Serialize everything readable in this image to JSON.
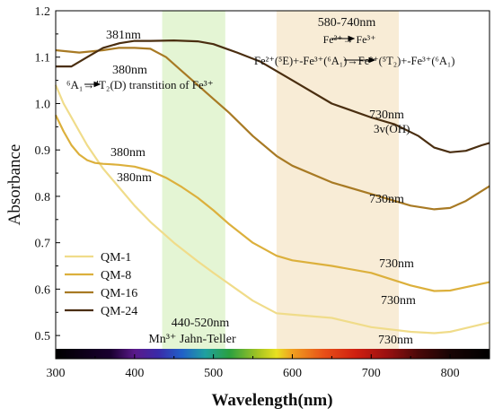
{
  "chart_data": {
    "type": "line",
    "xlabel": "Wavelength(nm)",
    "ylabel": "Absorbance",
    "xlim": [
      300,
      850
    ],
    "ylim": [
      0.45,
      1.2
    ],
    "xticks": [
      "300",
      "400",
      "500",
      "600",
      "700",
      "800"
    ],
    "yticks": [
      "0.5",
      "0.6",
      "0.7",
      "0.8",
      "0.9",
      "1.0",
      "1.1",
      "1.2"
    ],
    "legend_position": "bottom-left",
    "bands": [
      {
        "range": [
          435,
          515
        ],
        "color": "#e4f5d4"
      },
      {
        "range": [
          580,
          735
        ],
        "color": "#f8ecd6"
      }
    ],
    "series": [
      {
        "name": "QM-1",
        "color": "#f0dc8a",
        "x": [
          300,
          310,
          320,
          330,
          340,
          350,
          360,
          380,
          400,
          420,
          450,
          480,
          500,
          550,
          580,
          600,
          650,
          700,
          750,
          780,
          800,
          850
        ],
        "y": [
          1.04,
          1.0,
          0.97,
          0.94,
          0.91,
          0.885,
          0.86,
          0.82,
          0.78,
          0.745,
          0.7,
          0.66,
          0.635,
          0.575,
          0.548,
          0.545,
          0.538,
          0.518,
          0.508,
          0.505,
          0.508,
          0.528
        ]
      },
      {
        "name": "QM-8",
        "color": "#dcb03c",
        "x": [
          300,
          310,
          320,
          330,
          340,
          350,
          360,
          370,
          380,
          400,
          420,
          440,
          460,
          480,
          500,
          520,
          550,
          580,
          600,
          650,
          700,
          750,
          780,
          800,
          850
        ],
        "y": [
          0.975,
          0.94,
          0.91,
          0.89,
          0.878,
          0.872,
          0.87,
          0.869,
          0.868,
          0.864,
          0.855,
          0.84,
          0.82,
          0.797,
          0.77,
          0.74,
          0.7,
          0.672,
          0.662,
          0.65,
          0.635,
          0.608,
          0.596,
          0.597,
          0.615
        ]
      },
      {
        "name": "QM-16",
        "color": "#a87a24",
        "x": [
          300,
          330,
          360,
          380,
          400,
          420,
          440,
          460,
          480,
          500,
          520,
          550,
          580,
          600,
          650,
          700,
          750,
          780,
          800,
          820,
          850
        ],
        "y": [
          1.115,
          1.11,
          1.115,
          1.12,
          1.12,
          1.118,
          1.1,
          1.07,
          1.04,
          1.01,
          0.98,
          0.93,
          0.887,
          0.866,
          0.83,
          0.805,
          0.78,
          0.772,
          0.775,
          0.79,
          0.822
        ]
      },
      {
        "name": "QM-24",
        "color": "#4a2e10",
        "x": [
          300,
          320,
          340,
          360,
          381,
          400,
          420,
          450,
          480,
          500,
          530,
          560,
          600,
          650,
          700,
          730,
          760,
          780,
          800,
          820,
          840,
          850
        ],
        "y": [
          1.08,
          1.08,
          1.1,
          1.12,
          1.13,
          1.135,
          1.135,
          1.136,
          1.134,
          1.128,
          1.11,
          1.09,
          1.05,
          1.0,
          0.97,
          0.955,
          0.93,
          0.905,
          0.895,
          0.898,
          0.91,
          0.915
        ]
      }
    ],
    "annotations": {
      "peak_381": "381nm",
      "peak_380_a": "380nm",
      "peak_380_b": "380nm",
      "peak_380_c": "380nm",
      "t2_transition": "⁶A₁→⁴T₂(D) transtition of Fe³⁺",
      "band_580_740": "580-740nm",
      "fe_redox": "Fe²⁺→ Fe³⁺",
      "fe_ct": "Fe²⁺(⁵E)+-Fe³⁺(⁶A₁)→Fe²⁺(⁵T₂)+-Fe³⁺(⁶A₁)",
      "oh_peak": "730nm",
      "oh_label": "3v(OH)",
      "peak_730_a": "730nm",
      "peak_730_b": "730nm",
      "peak_730_c": "730nm",
      "peak_730_d": "730nm",
      "band_440_520": "440-520nm",
      "jahn_teller": "Mn³⁺ Jahn-Teller"
    }
  }
}
